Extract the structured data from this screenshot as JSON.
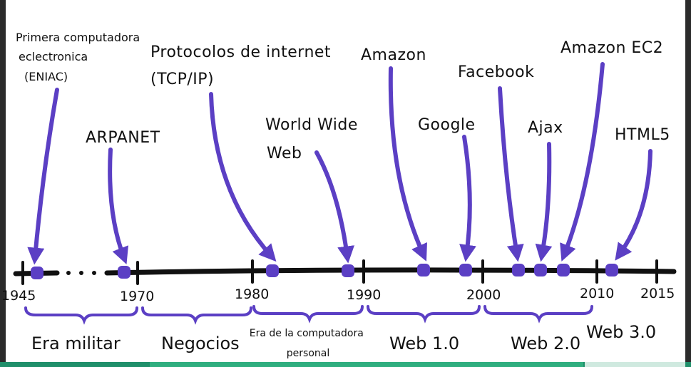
{
  "events": [
    {
      "lines": [
        "Primera computadora",
        "eclectronica",
        "(ENIAC)"
      ]
    },
    {
      "lines": [
        "ARPANET"
      ]
    },
    {
      "lines": [
        "Protocolos de internet",
        "(TCP/IP)"
      ]
    },
    {
      "lines": [
        "World Wide",
        "Web"
      ]
    },
    {
      "lines": [
        "Amazon"
      ]
    },
    {
      "lines": [
        "Google"
      ]
    },
    {
      "lines": [
        "Facebook"
      ]
    },
    {
      "lines": [
        "Ajax"
      ]
    },
    {
      "lines": [
        "Amazon EC2"
      ]
    },
    {
      "lines": [
        "HTML5"
      ]
    }
  ],
  "years": [
    "1945",
    "1970",
    "1980",
    "1990",
    "2000",
    "2010",
    "2015"
  ],
  "eras": [
    {
      "lines": [
        "Era militar"
      ]
    },
    {
      "lines": [
        "Negocios"
      ]
    },
    {
      "lines": [
        "Era de la computadora",
        "personal"
      ]
    },
    {
      "lines": [
        "Web 1.0"
      ]
    },
    {
      "lines": [
        "Web 2.0"
      ]
    },
    {
      "lines": [
        "Web 3.0"
      ]
    }
  ],
  "colors": {
    "arrow": "#5b3fc4",
    "timeline": "#111111",
    "bracket": "#5b3fc4"
  }
}
